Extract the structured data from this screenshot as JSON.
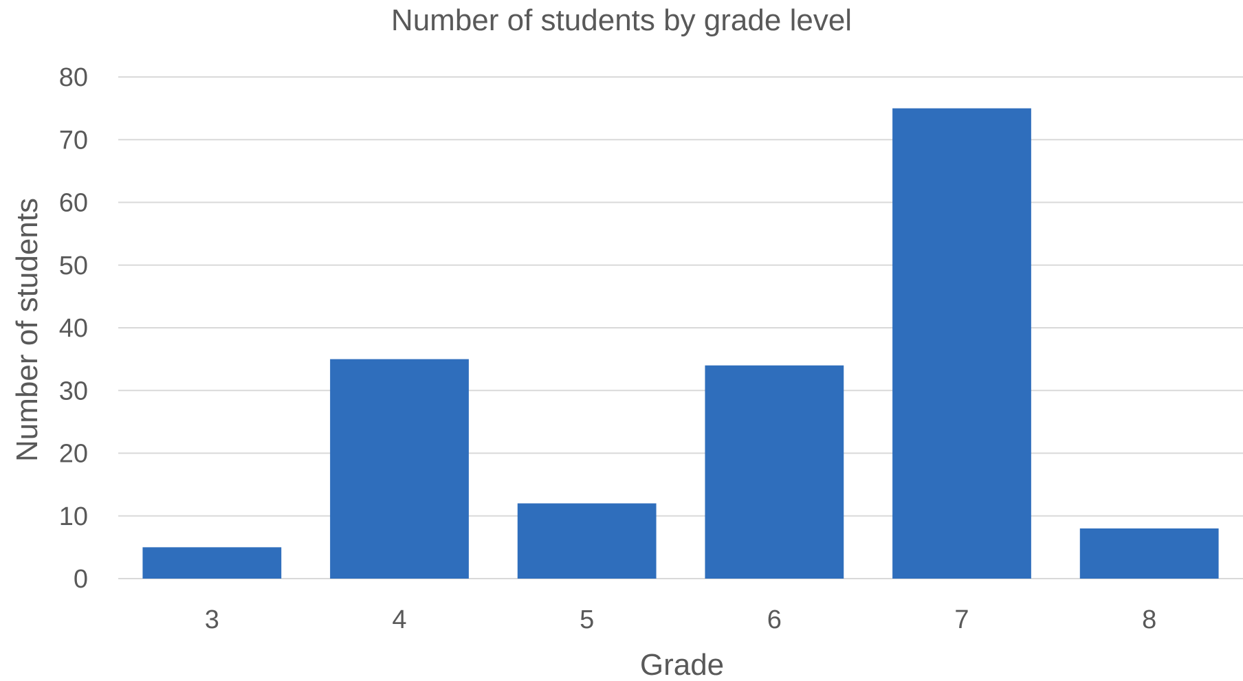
{
  "chart_data": {
    "type": "bar",
    "title": "Number of students by grade level",
    "xlabel": "Grade",
    "ylabel": "Number of students",
    "categories": [
      "3",
      "4",
      "5",
      "6",
      "7",
      "8"
    ],
    "values": [
      5,
      35,
      12,
      34,
      75,
      8
    ],
    "ylim": [
      0,
      80
    ],
    "yticks": [
      0,
      10,
      20,
      30,
      40,
      50,
      60,
      70,
      80
    ],
    "grid": true,
    "legend": "none",
    "bar_color": "#2f6ebc",
    "gridline_color": "#d9d9d9",
    "text_color": "#595959"
  }
}
